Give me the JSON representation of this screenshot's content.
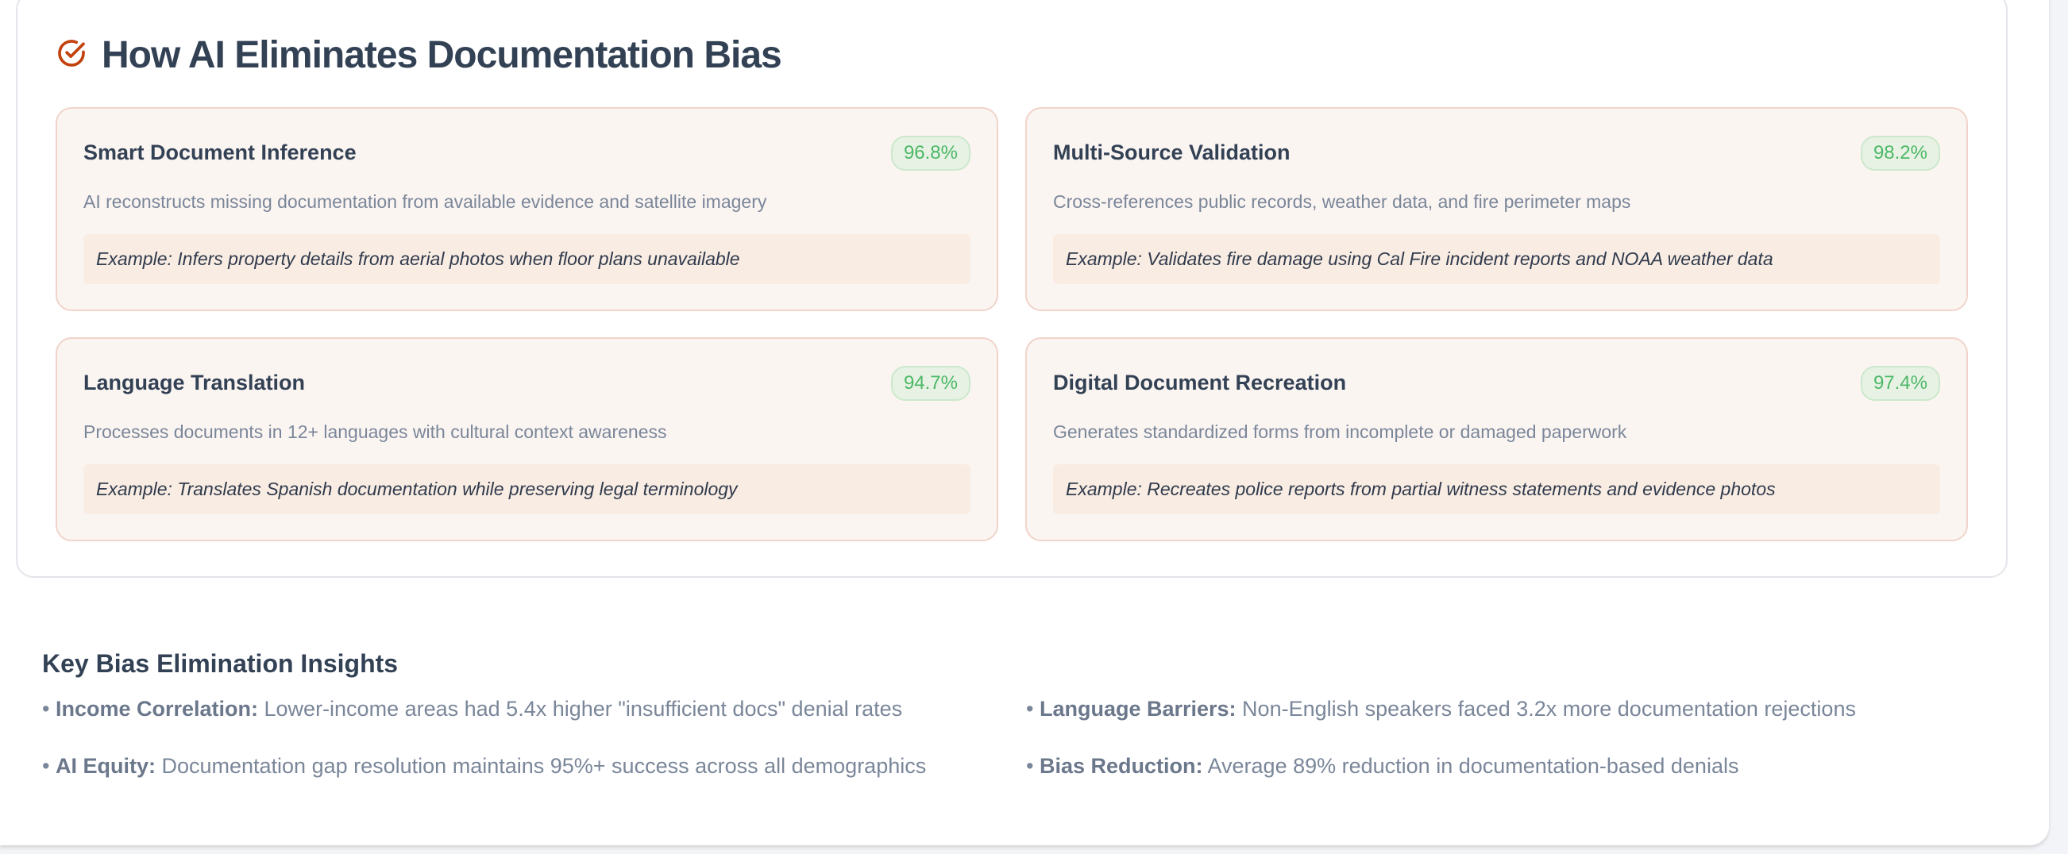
{
  "section": {
    "title": "How AI Eliminates Documentation Bias",
    "icon": "check-circle-icon",
    "accent": "#c2410c",
    "cards": [
      {
        "title": "Smart Document Inference",
        "rate": "96.8%",
        "description": "AI reconstructs missing documentation from available evidence and satellite imagery",
        "example": "Example: Infers property details from aerial photos when floor plans unavailable"
      },
      {
        "title": "Multi-Source Validation",
        "rate": "98.2%",
        "description": "Cross-references public records, weather data, and fire perimeter maps",
        "example": "Example: Validates fire damage using Cal Fire incident reports and NOAA weather data"
      },
      {
        "title": "Language Translation",
        "rate": "94.7%",
        "description": "Processes documents in 12+ languages with cultural context awareness",
        "example": "Example: Translates Spanish documentation while preserving legal terminology"
      },
      {
        "title": "Digital Document Recreation",
        "rate": "97.4%",
        "description": "Generates standardized forms from incomplete or damaged paperwork",
        "example": "Example: Recreates police reports from partial witness statements and evidence photos"
      }
    ]
  },
  "insights": {
    "title": "Key Bias Elimination Insights",
    "items": [
      {
        "label": "Income Correlation:",
        "text": " Lower-income areas had 5.4x higher \"insufficient docs\" denial rates"
      },
      {
        "label": "Language Barriers:",
        "text": " Non-English speakers faced 3.2x more documentation rejections"
      },
      {
        "label": "AI Equity:",
        "text": " Documentation gap resolution maintains 95%+ success across all demographics"
      },
      {
        "label": "Bias Reduction:",
        "text": " Average 89% reduction in documentation-based denials"
      }
    ]
  }
}
